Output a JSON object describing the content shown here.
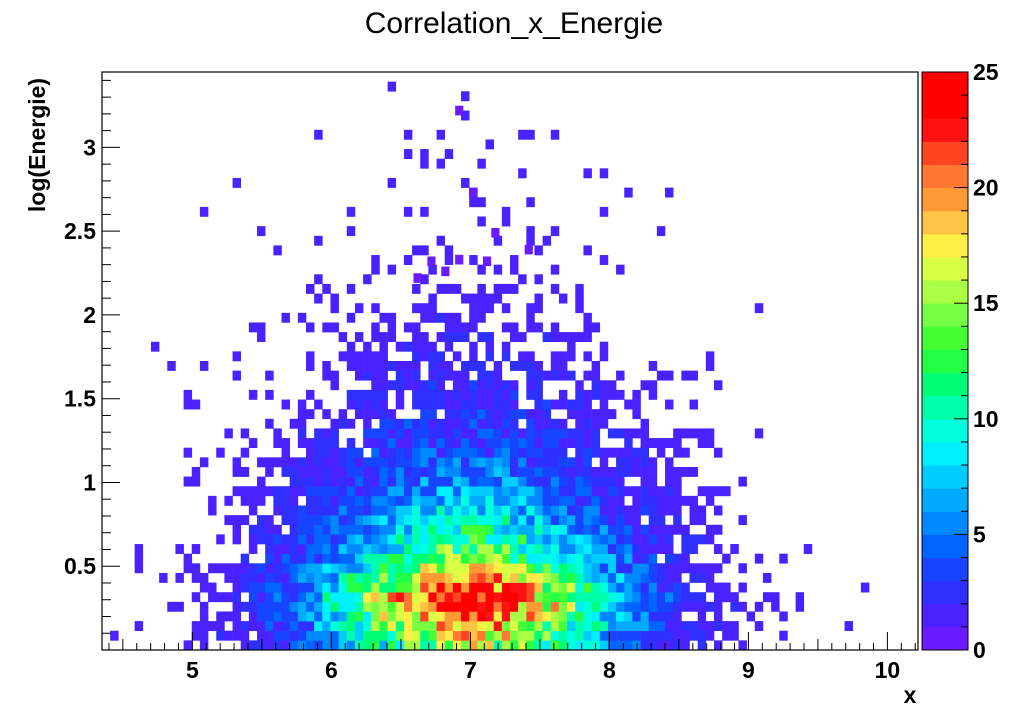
{
  "chart_data": {
    "type": "heatmap",
    "title": "Correlation_x_Energie",
    "xlabel": "x",
    "ylabel": "log(Energie)",
    "xlim": [
      4.35,
      10.22
    ],
    "ylim": [
      0.0,
      3.45
    ],
    "x_ticks": [
      5,
      6,
      7,
      8,
      9,
      10
    ],
    "y_ticks": [
      0.5,
      1,
      1.5,
      2,
      2.5,
      3
    ],
    "y_tick_labels": [
      "0.5",
      "1",
      "1.5",
      "2",
      "2.5",
      "3"
    ],
    "x_tick_labels": [
      "5",
      "6",
      "7",
      "8",
      "9",
      "10"
    ],
    "colorbar": {
      "min": 0,
      "max": 25,
      "ticks": [
        0,
        5,
        10,
        15,
        20,
        25
      ],
      "tick_labels": [
        "0",
        "5",
        "10",
        "15",
        "20",
        "25"
      ],
      "palette": [
        "#6a1bff",
        "#4a22ff",
        "#2f2fff",
        "#1745ff",
        "#0066ff",
        "#0088ff",
        "#00aaff",
        "#00ccff",
        "#00f0ff",
        "#00ffdd",
        "#00ffaa",
        "#00ff77",
        "#22ff44",
        "#44ff33",
        "#77ff44",
        "#aaff44",
        "#d8ff44",
        "#ffee44",
        "#ffc444",
        "#ff9933",
        "#ff7733",
        "#ff4422",
        "#ff1111",
        "#ff0000",
        "#ff0000"
      ]
    },
    "distribution": {
      "x_mean": 7.0,
      "x_sigma": 0.75,
      "energy_peak": 0.3,
      "energy_decay": 0.45,
      "bins_x": 100,
      "bins_y": 60
    },
    "outlier_points": [
      {
        "x": 6.92,
        "y": 3.22
      },
      {
        "x": 7.02,
        "y": 2.73
      },
      {
        "x": 7.18,
        "y": 2.49
      },
      {
        "x": 7.42,
        "y": 2.39
      },
      {
        "x": 6.62,
        "y": 2.22
      },
      {
        "x": 6.72,
        "y": 2.32
      },
      {
        "x": 6.82,
        "y": 2.26
      },
      {
        "x": 6.92,
        "y": 2.33
      },
      {
        "x": 7.12,
        "y": 2.32
      }
    ]
  }
}
